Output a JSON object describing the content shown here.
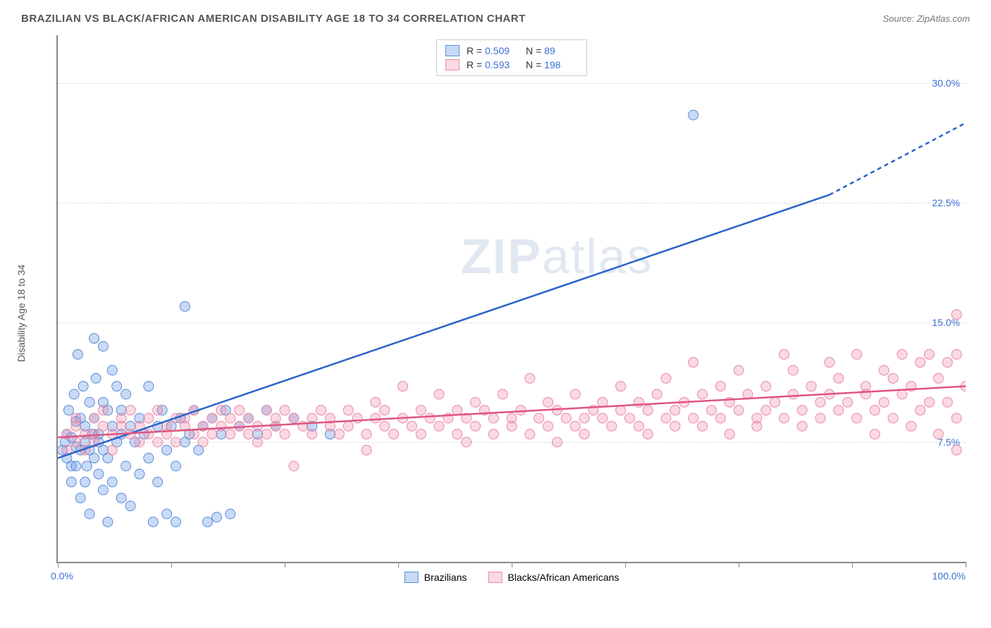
{
  "header": {
    "title": "BRAZILIAN VS BLACK/AFRICAN AMERICAN DISABILITY AGE 18 TO 34 CORRELATION CHART",
    "source_prefix": "Source: ",
    "source": "ZipAtlas.com"
  },
  "chart": {
    "type": "scatter",
    "y_axis_label": "Disability Age 18 to 34",
    "x_min_label": "0.0%",
    "x_max_label": "100.0%",
    "xlim": [
      0,
      100
    ],
    "ylim": [
      0,
      33
    ],
    "y_ticks": [
      {
        "value": 7.5,
        "label": "7.5%"
      },
      {
        "value": 15.0,
        "label": "15.0%"
      },
      {
        "value": 22.5,
        "label": "22.5%"
      },
      {
        "value": 30.0,
        "label": "30.0%"
      }
    ],
    "x_tick_positions": [
      0,
      12.5,
      25,
      37.5,
      50,
      62.5,
      75,
      87.5,
      100
    ],
    "grid_color": "#dddddd",
    "axis_color": "#888888",
    "tick_label_color": "#3b6fd4",
    "background_color": "#ffffff",
    "series": [
      {
        "name": "Brazilians",
        "marker_color": "rgba(100,150,230,0.35)",
        "marker_stroke": "#5a8dd6",
        "marker_radius": 7,
        "trend_color": "#2b63c9",
        "trend_width": 2.5,
        "trend_start": [
          0,
          6.5
        ],
        "trend_end_solid": [
          85,
          23.0
        ],
        "trend_end_dash": [
          100,
          27.5
        ],
        "R": "0.509",
        "N": "89",
        "points": [
          [
            0.5,
            7.0
          ],
          [
            0.8,
            7.5
          ],
          [
            1.0,
            6.5
          ],
          [
            1.0,
            8.0
          ],
          [
            1.2,
            9.5
          ],
          [
            1.5,
            7.8
          ],
          [
            1.5,
            6.0
          ],
          [
            1.5,
            5.0
          ],
          [
            1.8,
            10.5
          ],
          [
            2.0,
            7.2
          ],
          [
            2.0,
            8.8
          ],
          [
            2.0,
            6.0
          ],
          [
            2.2,
            13.0
          ],
          [
            2.5,
            7.0
          ],
          [
            2.5,
            9.0
          ],
          [
            2.5,
            4.0
          ],
          [
            2.8,
            11.0
          ],
          [
            3.0,
            7.5
          ],
          [
            3.0,
            8.5
          ],
          [
            3.0,
            5.0
          ],
          [
            3.2,
            6.0
          ],
          [
            3.5,
            10.0
          ],
          [
            3.5,
            7.0
          ],
          [
            3.5,
            3.0
          ],
          [
            3.8,
            8.0
          ],
          [
            4.0,
            14.0
          ],
          [
            4.0,
            9.0
          ],
          [
            4.0,
            6.5
          ],
          [
            4.2,
            11.5
          ],
          [
            4.5,
            8.0
          ],
          [
            4.5,
            5.5
          ],
          [
            4.5,
            7.5
          ],
          [
            5.0,
            13.5
          ],
          [
            5.0,
            7.0
          ],
          [
            5.0,
            10.0
          ],
          [
            5.0,
            4.5
          ],
          [
            5.5,
            9.5
          ],
          [
            5.5,
            6.5
          ],
          [
            5.5,
            2.5
          ],
          [
            6.0,
            8.5
          ],
          [
            6.0,
            12.0
          ],
          [
            6.0,
            5.0
          ],
          [
            6.5,
            7.5
          ],
          [
            6.5,
            11.0
          ],
          [
            7.0,
            8.0
          ],
          [
            7.0,
            9.5
          ],
          [
            7.0,
            4.0
          ],
          [
            7.5,
            10.5
          ],
          [
            7.5,
            6.0
          ],
          [
            8.0,
            8.5
          ],
          [
            8.0,
            3.5
          ],
          [
            8.5,
            7.5
          ],
          [
            9.0,
            9.0
          ],
          [
            9.0,
            5.5
          ],
          [
            9.5,
            8.0
          ],
          [
            10.0,
            11.0
          ],
          [
            10.0,
            6.5
          ],
          [
            10.5,
            2.5
          ],
          [
            11.0,
            8.5
          ],
          [
            11.0,
            5.0
          ],
          [
            11.5,
            9.5
          ],
          [
            12.0,
            7.0
          ],
          [
            12.0,
            3.0
          ],
          [
            12.5,
            8.5
          ],
          [
            13.0,
            6.0
          ],
          [
            13.0,
            2.5
          ],
          [
            13.5,
            9.0
          ],
          [
            14.0,
            7.5
          ],
          [
            14.0,
            16.0
          ],
          [
            14.5,
            8.0
          ],
          [
            15.0,
            9.5
          ],
          [
            15.5,
            7.0
          ],
          [
            16.0,
            8.5
          ],
          [
            16.5,
            2.5
          ],
          [
            17.0,
            9.0
          ],
          [
            17.5,
            2.8
          ],
          [
            18.0,
            8.0
          ],
          [
            18.5,
            9.5
          ],
          [
            19.0,
            3.0
          ],
          [
            20.0,
            8.5
          ],
          [
            21.0,
            9.0
          ],
          [
            22.0,
            8.0
          ],
          [
            23.0,
            9.5
          ],
          [
            24.0,
            8.5
          ],
          [
            26.0,
            9.0
          ],
          [
            28.0,
            8.5
          ],
          [
            30.0,
            8.0
          ],
          [
            70.0,
            28.0
          ]
        ]
      },
      {
        "name": "Blacks/African Americans",
        "marker_color": "rgba(240,130,160,0.3)",
        "marker_stroke": "#e88aa8",
        "marker_radius": 7,
        "trend_color": "#e0547f",
        "trend_width": 2.5,
        "trend_start": [
          0,
          7.8
        ],
        "trend_end_solid": [
          100,
          11.0
        ],
        "R": "0.593",
        "N": "198",
        "points": [
          [
            1,
            8.0
          ],
          [
            1,
            7.0
          ],
          [
            2,
            8.5
          ],
          [
            2,
            7.5
          ],
          [
            2,
            9.0
          ],
          [
            3,
            8.0
          ],
          [
            3,
            7.0
          ],
          [
            4,
            9.0
          ],
          [
            4,
            8.0
          ],
          [
            4,
            7.5
          ],
          [
            5,
            8.5
          ],
          [
            5,
            9.5
          ],
          [
            6,
            8.0
          ],
          [
            6,
            7.0
          ],
          [
            7,
            9.0
          ],
          [
            7,
            8.5
          ],
          [
            8,
            8.0
          ],
          [
            8,
            9.5
          ],
          [
            9,
            7.5
          ],
          [
            9,
            8.5
          ],
          [
            10,
            9.0
          ],
          [
            10,
            8.0
          ],
          [
            11,
            7.5
          ],
          [
            11,
            9.5
          ],
          [
            12,
            8.5
          ],
          [
            12,
            8.0
          ],
          [
            13,
            9.0
          ],
          [
            13,
            7.5
          ],
          [
            14,
            8.5
          ],
          [
            14,
            9.0
          ],
          [
            15,
            8.0
          ],
          [
            15,
            9.5
          ],
          [
            16,
            8.5
          ],
          [
            16,
            7.5
          ],
          [
            17,
            9.0
          ],
          [
            17,
            8.0
          ],
          [
            18,
            9.5
          ],
          [
            18,
            8.5
          ],
          [
            19,
            8.0
          ],
          [
            19,
            9.0
          ],
          [
            20,
            8.5
          ],
          [
            20,
            9.5
          ],
          [
            21,
            8.0
          ],
          [
            21,
            9.0
          ],
          [
            22,
            8.5
          ],
          [
            22,
            7.5
          ],
          [
            23,
            9.5
          ],
          [
            23,
            8.0
          ],
          [
            24,
            9.0
          ],
          [
            24,
            8.5
          ],
          [
            25,
            8.0
          ],
          [
            25,
            9.5
          ],
          [
            26,
            9.0
          ],
          [
            26,
            6.0
          ],
          [
            27,
            8.5
          ],
          [
            28,
            9.0
          ],
          [
            28,
            8.0
          ],
          [
            29,
            9.5
          ],
          [
            30,
            8.5
          ],
          [
            30,
            9.0
          ],
          [
            31,
            8.0
          ],
          [
            32,
            9.5
          ],
          [
            32,
            8.5
          ],
          [
            33,
            9.0
          ],
          [
            34,
            8.0
          ],
          [
            34,
            7.0
          ],
          [
            35,
            10.0
          ],
          [
            35,
            9.0
          ],
          [
            36,
            8.5
          ],
          [
            36,
            9.5
          ],
          [
            37,
            8.0
          ],
          [
            38,
            9.0
          ],
          [
            38,
            11.0
          ],
          [
            39,
            8.5
          ],
          [
            40,
            9.5
          ],
          [
            40,
            8.0
          ],
          [
            41,
            9.0
          ],
          [
            42,
            10.5
          ],
          [
            42,
            8.5
          ],
          [
            43,
            9.0
          ],
          [
            44,
            8.0
          ],
          [
            44,
            9.5
          ],
          [
            45,
            9.0
          ],
          [
            45,
            7.5
          ],
          [
            46,
            10.0
          ],
          [
            46,
            8.5
          ],
          [
            47,
            9.5
          ],
          [
            48,
            9.0
          ],
          [
            48,
            8.0
          ],
          [
            49,
            10.5
          ],
          [
            50,
            9.0
          ],
          [
            50,
            8.5
          ],
          [
            51,
            9.5
          ],
          [
            52,
            8.0
          ],
          [
            52,
            11.5
          ],
          [
            53,
            9.0
          ],
          [
            54,
            8.5
          ],
          [
            54,
            10.0
          ],
          [
            55,
            9.5
          ],
          [
            55,
            7.5
          ],
          [
            56,
            9.0
          ],
          [
            57,
            8.5
          ],
          [
            57,
            10.5
          ],
          [
            58,
            9.0
          ],
          [
            58,
            8.0
          ],
          [
            59,
            9.5
          ],
          [
            60,
            10.0
          ],
          [
            60,
            9.0
          ],
          [
            61,
            8.5
          ],
          [
            62,
            9.5
          ],
          [
            62,
            11.0
          ],
          [
            63,
            9.0
          ],
          [
            64,
            10.0
          ],
          [
            64,
            8.5
          ],
          [
            65,
            9.5
          ],
          [
            65,
            8.0
          ],
          [
            66,
            10.5
          ],
          [
            67,
            9.0
          ],
          [
            67,
            11.5
          ],
          [
            68,
            9.5
          ],
          [
            68,
            8.5
          ],
          [
            69,
            10.0
          ],
          [
            70,
            9.0
          ],
          [
            70,
            12.5
          ],
          [
            71,
            10.5
          ],
          [
            71,
            8.5
          ],
          [
            72,
            9.5
          ],
          [
            73,
            9.0
          ],
          [
            73,
            11.0
          ],
          [
            74,
            10.0
          ],
          [
            74,
            8.0
          ],
          [
            75,
            9.5
          ],
          [
            75,
            12.0
          ],
          [
            76,
            10.5
          ],
          [
            77,
            9.0
          ],
          [
            77,
            8.5
          ],
          [
            78,
            11.0
          ],
          [
            78,
            9.5
          ],
          [
            79,
            10.0
          ],
          [
            80,
            13.0
          ],
          [
            80,
            9.0
          ],
          [
            81,
            10.5
          ],
          [
            81,
            12.0
          ],
          [
            82,
            9.5
          ],
          [
            82,
            8.5
          ],
          [
            83,
            11.0
          ],
          [
            84,
            10.0
          ],
          [
            84,
            9.0
          ],
          [
            85,
            12.5
          ],
          [
            85,
            10.5
          ],
          [
            86,
            9.5
          ],
          [
            86,
            11.5
          ],
          [
            87,
            10.0
          ],
          [
            88,
            13.0
          ],
          [
            88,
            9.0
          ],
          [
            89,
            11.0
          ],
          [
            89,
            10.5
          ],
          [
            90,
            9.5
          ],
          [
            90,
            8.0
          ],
          [
            91,
            12.0
          ],
          [
            91,
            10.0
          ],
          [
            92,
            11.5
          ],
          [
            92,
            9.0
          ],
          [
            93,
            13.0
          ],
          [
            93,
            10.5
          ],
          [
            94,
            8.5
          ],
          [
            94,
            11.0
          ],
          [
            95,
            12.5
          ],
          [
            95,
            9.5
          ],
          [
            96,
            10.0
          ],
          [
            96,
            13.0
          ],
          [
            97,
            8.0
          ],
          [
            97,
            11.5
          ],
          [
            98,
            12.5
          ],
          [
            98,
            10.0
          ],
          [
            99,
            15.5
          ],
          [
            99,
            9.0
          ],
          [
            99,
            13.0
          ],
          [
            99,
            7.0
          ],
          [
            100,
            11.0
          ]
        ]
      }
    ],
    "watermark": {
      "bold": "ZIP",
      "rest": "atlas"
    },
    "bottom_legend": [
      {
        "swatch": "blue",
        "label": "Brazilians"
      },
      {
        "swatch": "pink",
        "label": "Blacks/African Americans"
      }
    ]
  }
}
